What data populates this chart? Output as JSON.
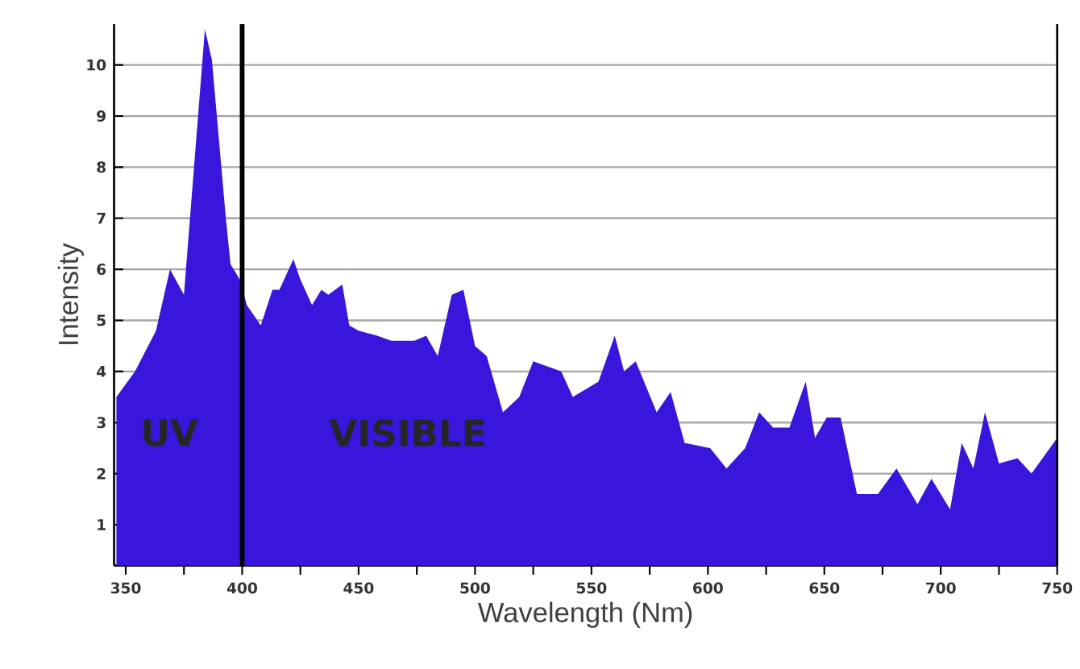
{
  "chart_data": {
    "type": "area",
    "xlabel": "Wavelength (Nm)",
    "ylabel": "Intensity",
    "x": [
      346,
      354,
      363,
      369,
      375,
      384,
      387,
      393,
      395,
      399,
      402,
      408,
      413,
      416,
      422,
      425,
      430,
      434,
      437,
      443,
      446,
      450,
      458,
      464,
      474,
      479,
      484,
      490,
      495,
      500,
      505,
      512,
      519,
      525,
      537,
      542,
      553,
      560,
      564,
      569,
      578,
      584,
      590,
      601,
      608,
      616,
      622,
      628,
      635,
      642,
      646,
      651,
      657,
      664,
      673,
      681,
      690,
      696,
      704,
      709,
      714,
      719,
      725,
      733,
      739,
      750
    ],
    "values": [
      3.5,
      4.0,
      4.8,
      6.0,
      5.5,
      10.7,
      10.1,
      7.0,
      6.1,
      5.8,
      5.3,
      4.9,
      5.6,
      5.6,
      6.2,
      5.8,
      5.3,
      5.6,
      5.5,
      5.7,
      4.9,
      4.8,
      4.7,
      4.6,
      4.6,
      4.7,
      4.3,
      5.5,
      5.6,
      4.5,
      4.3,
      3.2,
      3.5,
      4.2,
      4.0,
      3.5,
      3.8,
      4.7,
      4.0,
      4.2,
      3.2,
      3.6,
      2.6,
      2.5,
      2.1,
      2.5,
      3.2,
      2.9,
      2.9,
      3.8,
      2.7,
      3.1,
      3.1,
      1.6,
      1.6,
      2.1,
      1.4,
      1.9,
      1.3,
      2.6,
      2.1,
      3.2,
      2.2,
      2.3,
      2.0,
      2.7
    ],
    "color": "#3a16dc",
    "xlim": [
      345,
      750
    ],
    "ylim": [
      0.2,
      10.8
    ],
    "xticks": [
      350,
      {
        "value": 375,
        "label": null
      },
      400,
      {
        "value": 425,
        "label": null
      },
      450,
      {
        "value": 475,
        "label": null
      },
      500,
      {
        "value": 525,
        "label": null
      },
      550,
      {
        "value": 575,
        "label": null
      },
      600,
      {
        "value": 625,
        "label": null
      },
      650,
      {
        "value": 675,
        "label": null
      },
      700,
      {
        "value": 725,
        "label": null
      },
      750
    ],
    "yticks": [
      1,
      2,
      3,
      4,
      5,
      6,
      7,
      8,
      9,
      10
    ],
    "grid": "y",
    "ref_lines": [
      {
        "axis": "x",
        "value": 400,
        "color": "#000000"
      }
    ],
    "annotations": [
      "UV",
      "VISIBLE"
    ]
  }
}
